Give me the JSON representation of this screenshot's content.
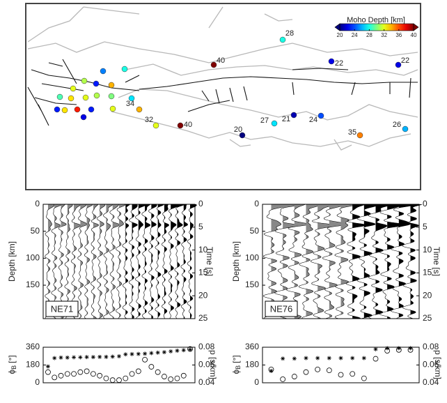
{
  "chart_data": [
    {
      "type": "map",
      "colorbar": {
        "label": "Moho Depth [km]",
        "lim": [
          20,
          40
        ],
        "ticks": [
          20,
          24,
          28,
          32,
          36,
          40
        ]
      },
      "labeled_stations": [
        28,
        40,
        22,
        22,
        34,
        32,
        40,
        20,
        27,
        21,
        24,
        35,
        26
      ],
      "other_stations": [
        28,
        25,
        31,
        23,
        34,
        32,
        29,
        33,
        32,
        31,
        30,
        27,
        23,
        37,
        23,
        33,
        32,
        22
      ]
    },
    {
      "type": "receiver-function",
      "station": "NE71",
      "ylabel": "Depth [km]",
      "ylim": [
        0,
        212
      ],
      "yticks": [
        0,
        50,
        100,
        150
      ],
      "y2label": "Time [s]",
      "y2lim": [
        0,
        25
      ],
      "y2ticks": [
        0,
        5,
        10,
        15,
        20,
        25
      ],
      "lower": {
        "ylabel_symbol": "ϕ",
        "ylabel_sub": "B",
        "ylabel_unit": "[°]",
        "ylim": [
          0,
          360
        ],
        "yticks": [
          0,
          180,
          360
        ],
        "y2label": "p [s/km]",
        "y2lim": [
          0.04,
          0.08
        ],
        "y2ticks": [
          0.04,
          0.06,
          0.08
        ],
        "backazimuth": [
          165,
          250,
          255,
          255,
          258,
          258,
          260,
          260,
          262,
          262,
          265,
          268,
          288,
          290,
          292,
          295,
          300,
          305,
          310,
          318,
          325,
          330,
          335
        ],
        "ray_parameter": [
          0.052,
          0.046,
          0.048,
          0.05,
          0.05,
          0.052,
          0.053,
          0.05,
          0.048,
          0.045,
          0.043,
          0.043,
          0.045,
          0.05,
          0.053,
          0.066,
          0.058,
          0.052,
          0.047,
          0.044,
          0.045,
          0.048,
          0.078
        ]
      }
    },
    {
      "type": "receiver-function",
      "station": "NE76",
      "ylabel": "Depth [km]",
      "ylim": [
        0,
        212
      ],
      "yticks": [
        0,
        50,
        100,
        150
      ],
      "y2label": "Time [s]",
      "y2lim": [
        0,
        25
      ],
      "y2ticks": [
        0,
        5,
        10,
        15,
        20,
        25
      ],
      "lower": {
        "ylabel_symbol": "ϕ",
        "ylabel_sub": "B",
        "ylabel_unit": "[°]",
        "ylim": [
          0,
          360
        ],
        "yticks": [
          0,
          180,
          360
        ],
        "y2label": "p [s/km]",
        "y2lim": [
          0.04,
          0.08
        ],
        "y2ticks": [
          0.04,
          0.06,
          0.08
        ],
        "backazimuth": [
          120,
          245,
          245,
          250,
          250,
          250,
          250,
          250,
          250,
          340,
          350,
          350,
          350
        ],
        "ray_parameter": [
          0.055,
          0.044,
          0.047,
          0.052,
          0.055,
          0.054,
          0.049,
          0.05,
          0.045,
          0.067,
          0.076,
          0.077,
          0.077
        ]
      }
    }
  ]
}
